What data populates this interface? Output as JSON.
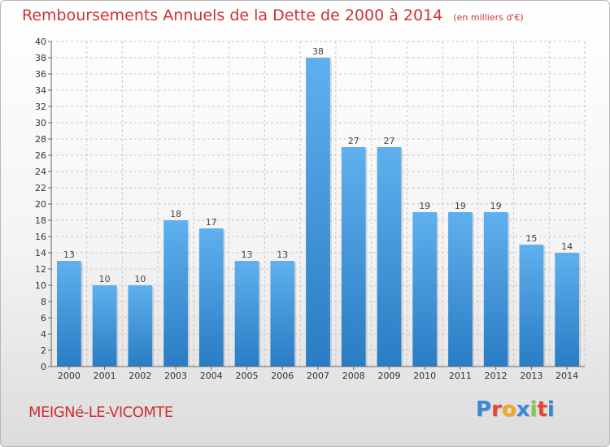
{
  "chart_data": {
    "type": "bar",
    "title": "Remboursements Annuels de la Dette de 2000 à 2014",
    "subtitle": "(en milliers d'€)",
    "categories": [
      "2000",
      "2001",
      "2002",
      "2003",
      "2004",
      "2005",
      "2006",
      "2007",
      "2008",
      "2009",
      "2010",
      "2011",
      "2012",
      "2013",
      "2014"
    ],
    "values": [
      13,
      10,
      10,
      18,
      17,
      13,
      13,
      38,
      27,
      27,
      19,
      19,
      19,
      15,
      14
    ],
    "ylim": [
      0,
      40
    ],
    "yticks": [
      0,
      2,
      4,
      6,
      8,
      10,
      12,
      14,
      16,
      18,
      20,
      22,
      24,
      26,
      28,
      30,
      32,
      34,
      36,
      38,
      40
    ],
    "grid": true,
    "bar_color": "#4a9de0",
    "bar_color_dark": "#2a7cc4"
  },
  "footer": {
    "commune": "MEIGNé-LE-VICOMTE",
    "logo_letters": [
      "P",
      "r",
      "o",
      "x",
      "i",
      "t",
      "i"
    ],
    "logo_colors": [
      "#3a87d4",
      "#e8432e",
      "#f5a623",
      "#3a87d4",
      "#8bc34a",
      "#e8432e",
      "#3a87d4"
    ]
  }
}
